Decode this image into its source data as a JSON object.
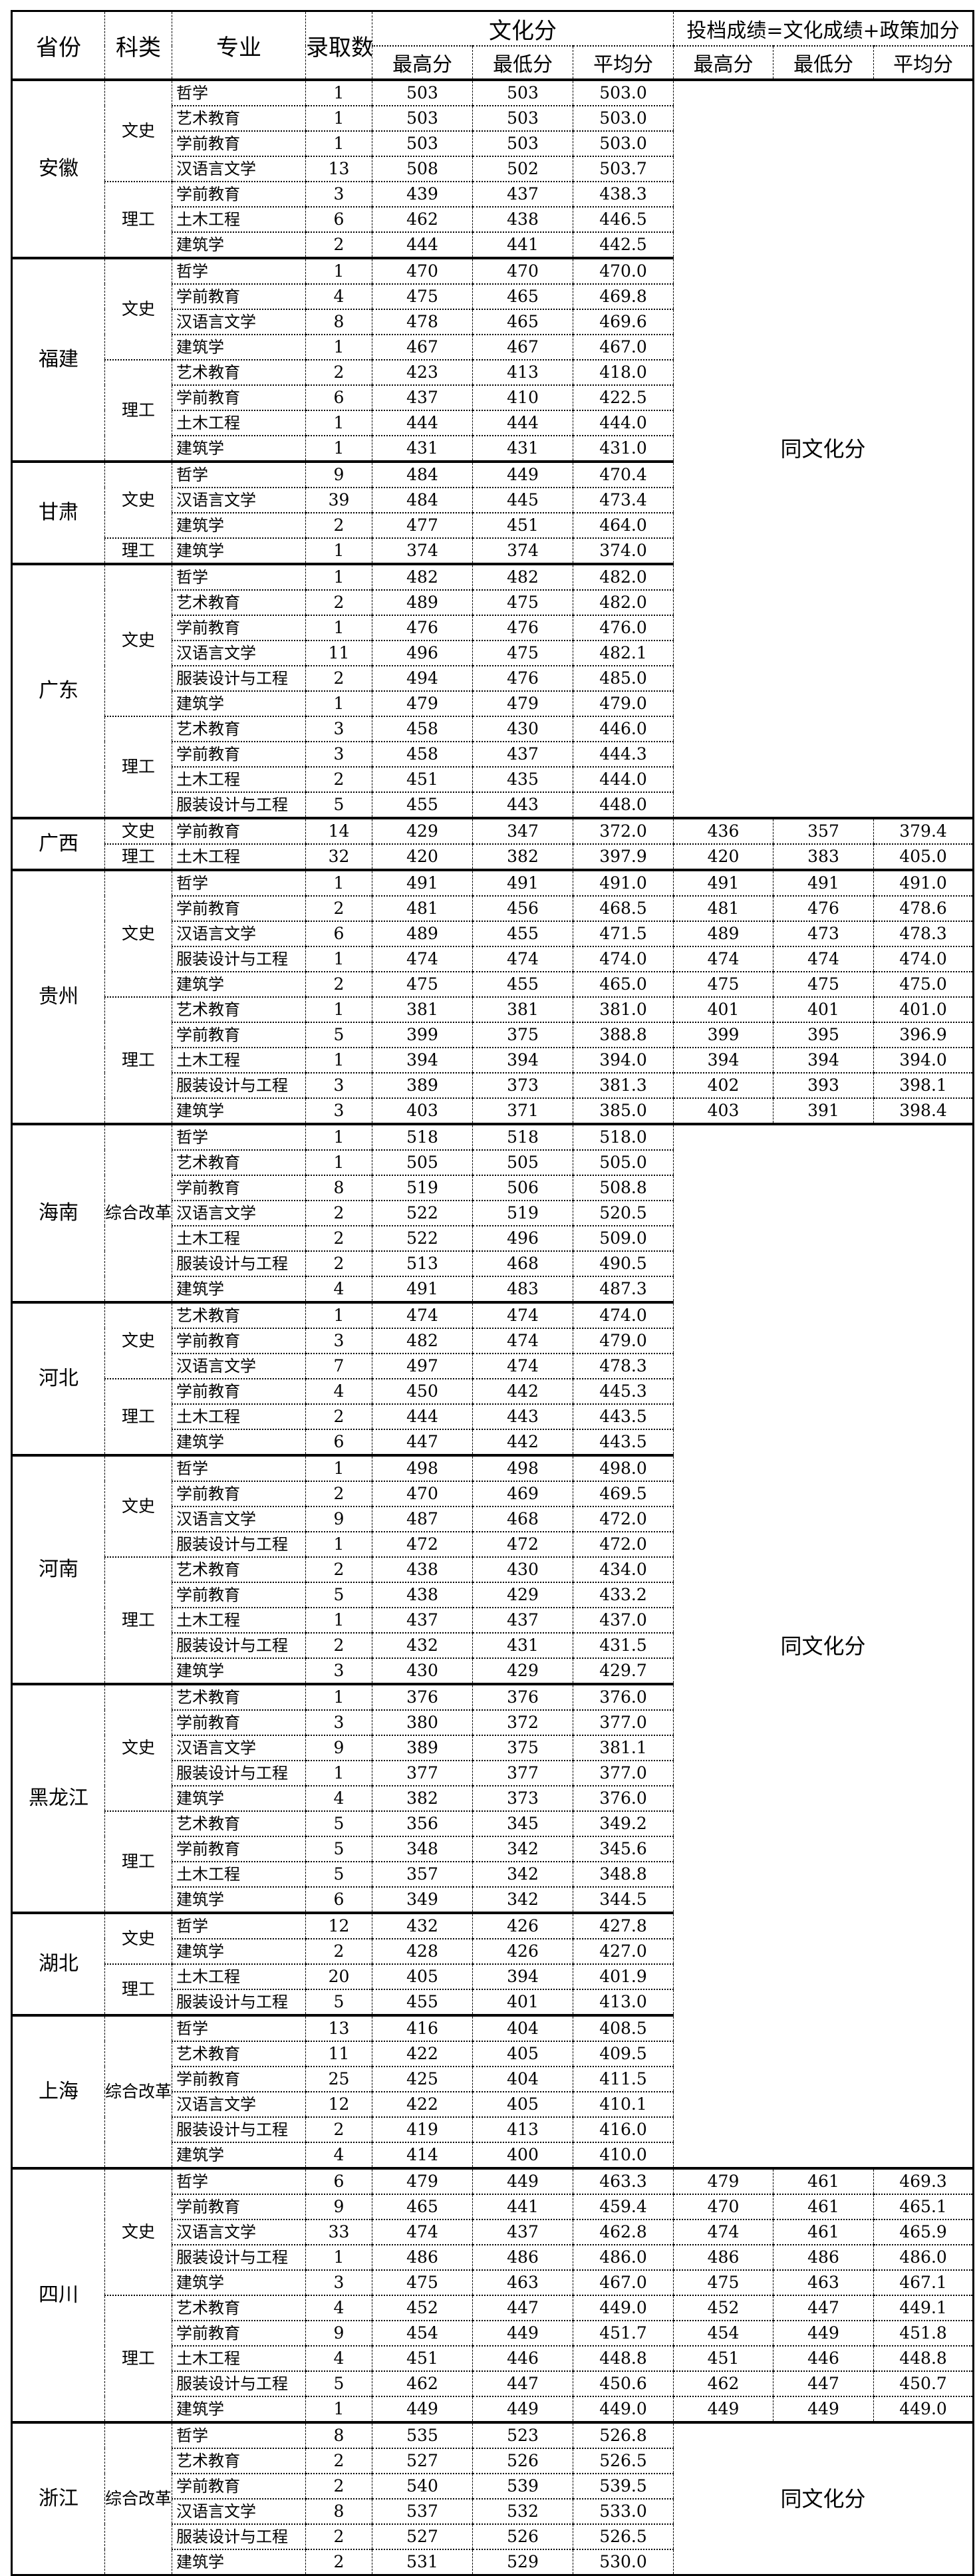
{
  "header": {
    "province": "省份",
    "category": "科类",
    "major": "专业",
    "admitted": "录取数",
    "culture_group": "文化分",
    "filing_group": "投档成绩=文化成绩+政策加分",
    "max": "最高分",
    "min": "最低分",
    "avg": "平均分"
  },
  "columns": [
    "专业",
    "录取数",
    "文化分最高分",
    "文化分最低分",
    "文化分平均分",
    "投档最高分",
    "投档最低分",
    "投档平均分"
  ],
  "same_label": "同文化分",
  "provinces": [
    {
      "name": "安徽",
      "same_as_culture": true,
      "groups": [
        {
          "category": "文史",
          "rows": [
            [
              "哲学",
              "1",
              "503",
              "503",
              "503.0"
            ],
            [
              "艺术教育",
              "1",
              "503",
              "503",
              "503.0"
            ],
            [
              "学前教育",
              "1",
              "503",
              "503",
              "503.0"
            ],
            [
              "汉语言文学",
              "13",
              "508",
              "502",
              "503.7"
            ]
          ]
        },
        {
          "category": "理工",
          "rows": [
            [
              "学前教育",
              "3",
              "439",
              "437",
              "438.3"
            ],
            [
              "土木工程",
              "6",
              "462",
              "438",
              "446.5"
            ],
            [
              "建筑学",
              "2",
              "444",
              "441",
              "442.5"
            ]
          ]
        }
      ]
    },
    {
      "name": "福建",
      "same_as_culture": true,
      "groups": [
        {
          "category": "文史",
          "rows": [
            [
              "哲学",
              "1",
              "470",
              "470",
              "470.0"
            ],
            [
              "学前教育",
              "4",
              "475",
              "465",
              "469.8"
            ],
            [
              "汉语言文学",
              "8",
              "478",
              "465",
              "469.6"
            ],
            [
              "建筑学",
              "1",
              "467",
              "467",
              "467.0"
            ]
          ]
        },
        {
          "category": "理工",
          "rows": [
            [
              "艺术教育",
              "2",
              "423",
              "413",
              "418.0"
            ],
            [
              "学前教育",
              "6",
              "437",
              "410",
              "422.5"
            ],
            [
              "土木工程",
              "1",
              "444",
              "444",
              "444.0"
            ],
            [
              "建筑学",
              "1",
              "431",
              "431",
              "431.0"
            ]
          ]
        }
      ]
    },
    {
      "name": "甘肃",
      "same_as_culture": true,
      "groups": [
        {
          "category": "文史",
          "rows": [
            [
              "哲学",
              "9",
              "484",
              "449",
              "470.4"
            ],
            [
              "汉语言文学",
              "39",
              "484",
              "445",
              "473.4"
            ],
            [
              "建筑学",
              "2",
              "477",
              "451",
              "464.0"
            ]
          ]
        },
        {
          "category": "理工",
          "rows": [
            [
              "建筑学",
              "1",
              "374",
              "374",
              "374.0"
            ]
          ]
        }
      ]
    },
    {
      "name": "广东",
      "same_as_culture": true,
      "groups": [
        {
          "category": "文史",
          "rows": [
            [
              "哲学",
              "1",
              "482",
              "482",
              "482.0"
            ],
            [
              "艺术教育",
              "2",
              "489",
              "475",
              "482.0"
            ],
            [
              "学前教育",
              "1",
              "476",
              "476",
              "476.0"
            ],
            [
              "汉语言文学",
              "11",
              "496",
              "475",
              "482.1"
            ],
            [
              "服装设计与工程",
              "2",
              "494",
              "476",
              "485.0"
            ],
            [
              "建筑学",
              "1",
              "479",
              "479",
              "479.0"
            ]
          ]
        },
        {
          "category": "理工",
          "rows": [
            [
              "艺术教育",
              "3",
              "458",
              "430",
              "446.0"
            ],
            [
              "学前教育",
              "3",
              "458",
              "437",
              "444.3"
            ],
            [
              "土木工程",
              "2",
              "451",
              "435",
              "444.0"
            ],
            [
              "服装设计与工程",
              "5",
              "455",
              "443",
              "448.0"
            ]
          ]
        }
      ]
    },
    {
      "name": "广西",
      "same_as_culture": false,
      "groups": [
        {
          "category": "文史",
          "rows": [
            [
              "学前教育",
              "14",
              "429",
              "347",
              "372.0",
              "436",
              "357",
              "379.4"
            ]
          ]
        },
        {
          "category": "理工",
          "rows": [
            [
              "土木工程",
              "32",
              "420",
              "382",
              "397.9",
              "420",
              "383",
              "405.0"
            ]
          ]
        }
      ]
    },
    {
      "name": "贵州",
      "same_as_culture": false,
      "groups": [
        {
          "category": "文史",
          "rows": [
            [
              "哲学",
              "1",
              "491",
              "491",
              "491.0",
              "491",
              "491",
              "491.0"
            ],
            [
              "学前教育",
              "2",
              "481",
              "456",
              "468.5",
              "481",
              "476",
              "478.6"
            ],
            [
              "汉语言文学",
              "6",
              "489",
              "455",
              "471.5",
              "489",
              "473",
              "478.3"
            ],
            [
              "服装设计与工程",
              "1",
              "474",
              "474",
              "474.0",
              "474",
              "474",
              "474.0"
            ],
            [
              "建筑学",
              "2",
              "475",
              "455",
              "465.0",
              "475",
              "475",
              "475.0"
            ]
          ]
        },
        {
          "category": "理工",
          "rows": [
            [
              "艺术教育",
              "1",
              "381",
              "381",
              "381.0",
              "401",
              "401",
              "401.0"
            ],
            [
              "学前教育",
              "5",
              "399",
              "375",
              "388.8",
              "399",
              "395",
              "396.9"
            ],
            [
              "土木工程",
              "1",
              "394",
              "394",
              "394.0",
              "394",
              "394",
              "394.0"
            ],
            [
              "服装设计与工程",
              "3",
              "389",
              "373",
              "381.3",
              "402",
              "393",
              "398.1"
            ],
            [
              "建筑学",
              "3",
              "403",
              "371",
              "385.0",
              "403",
              "391",
              "398.4"
            ]
          ]
        }
      ]
    },
    {
      "name": "海南",
      "same_as_culture": true,
      "groups": [
        {
          "category": "综合改革",
          "rows": [
            [
              "哲学",
              "1",
              "518",
              "518",
              "518.0"
            ],
            [
              "艺术教育",
              "1",
              "505",
              "505",
              "505.0"
            ],
            [
              "学前教育",
              "8",
              "519",
              "506",
              "508.8"
            ],
            [
              "汉语言文学",
              "2",
              "522",
              "519",
              "520.5"
            ],
            [
              "土木工程",
              "2",
              "522",
              "496",
              "509.0"
            ],
            [
              "服装设计与工程",
              "2",
              "513",
              "468",
              "490.5"
            ],
            [
              "建筑学",
              "4",
              "491",
              "483",
              "487.3"
            ]
          ]
        }
      ]
    },
    {
      "name": "河北",
      "same_as_culture": true,
      "groups": [
        {
          "category": "文史",
          "rows": [
            [
              "艺术教育",
              "1",
              "474",
              "474",
              "474.0"
            ],
            [
              "学前教育",
              "3",
              "482",
              "474",
              "479.0"
            ],
            [
              "汉语言文学",
              "7",
              "497",
              "474",
              "478.3"
            ]
          ]
        },
        {
          "category": "理工",
          "rows": [
            [
              "学前教育",
              "4",
              "450",
              "442",
              "445.3"
            ],
            [
              "土木工程",
              "2",
              "444",
              "443",
              "443.5"
            ],
            [
              "建筑学",
              "6",
              "447",
              "442",
              "443.5"
            ]
          ]
        }
      ]
    },
    {
      "name": "河南",
      "same_as_culture": true,
      "groups": [
        {
          "category": "文史",
          "rows": [
            [
              "哲学",
              "1",
              "498",
              "498",
              "498.0"
            ],
            [
              "学前教育",
              "2",
              "470",
              "469",
              "469.5"
            ],
            [
              "汉语言文学",
              "9",
              "487",
              "468",
              "472.0"
            ],
            [
              "服装设计与工程",
              "1",
              "472",
              "472",
              "472.0"
            ]
          ]
        },
        {
          "category": "理工",
          "rows": [
            [
              "艺术教育",
              "2",
              "438",
              "430",
              "434.0"
            ],
            [
              "学前教育",
              "5",
              "438",
              "429",
              "433.2"
            ],
            [
              "土木工程",
              "1",
              "437",
              "437",
              "437.0"
            ],
            [
              "服装设计与工程",
              "2",
              "432",
              "431",
              "431.5"
            ],
            [
              "建筑学",
              "3",
              "430",
              "429",
              "429.7"
            ]
          ]
        }
      ]
    },
    {
      "name": "黑龙江",
      "same_as_culture": true,
      "groups": [
        {
          "category": "文史",
          "rows": [
            [
              "艺术教育",
              "1",
              "376",
              "376",
              "376.0"
            ],
            [
              "学前教育",
              "3",
              "380",
              "372",
              "377.0"
            ],
            [
              "汉语言文学",
              "9",
              "389",
              "375",
              "381.1"
            ],
            [
              "服装设计与工程",
              "1",
              "377",
              "377",
              "377.0"
            ],
            [
              "建筑学",
              "4",
              "382",
              "373",
              "376.0"
            ]
          ]
        },
        {
          "category": "理工",
          "rows": [
            [
              "艺术教育",
              "5",
              "356",
              "345",
              "349.2"
            ],
            [
              "学前教育",
              "5",
              "348",
              "342",
              "345.6"
            ],
            [
              "土木工程",
              "5",
              "357",
              "342",
              "348.8"
            ],
            [
              "建筑学",
              "6",
              "349",
              "342",
              "344.5"
            ]
          ]
        }
      ]
    },
    {
      "name": "湖北",
      "same_as_culture": true,
      "groups": [
        {
          "category": "文史",
          "rows": [
            [
              "哲学",
              "12",
              "432",
              "426",
              "427.8"
            ],
            [
              "建筑学",
              "2",
              "428",
              "426",
              "427.0"
            ]
          ]
        },
        {
          "category": "理工",
          "rows": [
            [
              "土木工程",
              "20",
              "405",
              "394",
              "401.9"
            ],
            [
              "服装设计与工程",
              "5",
              "455",
              "401",
              "413.0"
            ]
          ]
        }
      ]
    },
    {
      "name": "上海",
      "same_as_culture": true,
      "groups": [
        {
          "category": "综合改革",
          "rows": [
            [
              "哲学",
              "13",
              "416",
              "404",
              "408.5"
            ],
            [
              "艺术教育",
              "11",
              "422",
              "405",
              "409.5"
            ],
            [
              "学前教育",
              "25",
              "425",
              "404",
              "411.5"
            ],
            [
              "汉语言文学",
              "12",
              "422",
              "405",
              "410.1"
            ],
            [
              "服装设计与工程",
              "2",
              "419",
              "413",
              "416.0"
            ],
            [
              "建筑学",
              "4",
              "414",
              "400",
              "410.0"
            ]
          ]
        }
      ]
    },
    {
      "name": "四川",
      "same_as_culture": false,
      "groups": [
        {
          "category": "文史",
          "rows": [
            [
              "哲学",
              "6",
              "479",
              "449",
              "463.3",
              "479",
              "461",
              "469.3"
            ],
            [
              "学前教育",
              "9",
              "465",
              "441",
              "459.4",
              "470",
              "461",
              "465.1"
            ],
            [
              "汉语言文学",
              "33",
              "474",
              "437",
              "462.8",
              "474",
              "461",
              "465.9"
            ],
            [
              "服装设计与工程",
              "1",
              "486",
              "486",
              "486.0",
              "486",
              "486",
              "486.0"
            ],
            [
              "建筑学",
              "3",
              "475",
              "463",
              "467.0",
              "475",
              "463",
              "467.1"
            ]
          ]
        },
        {
          "category": "理工",
          "rows": [
            [
              "艺术教育",
              "4",
              "452",
              "447",
              "449.0",
              "452",
              "447",
              "449.1"
            ],
            [
              "学前教育",
              "9",
              "454",
              "449",
              "451.7",
              "454",
              "449",
              "451.8"
            ],
            [
              "土木工程",
              "4",
              "451",
              "446",
              "448.8",
              "451",
              "446",
              "448.8"
            ],
            [
              "服装设计与工程",
              "5",
              "462",
              "447",
              "450.6",
              "462",
              "447",
              "450.7"
            ],
            [
              "建筑学",
              "1",
              "449",
              "449",
              "449.0",
              "449",
              "449",
              "449.0"
            ]
          ]
        }
      ]
    },
    {
      "name": "浙江",
      "same_as_culture": true,
      "groups": [
        {
          "category": "综合改革",
          "rows": [
            [
              "哲学",
              "8",
              "535",
              "523",
              "526.8"
            ],
            [
              "艺术教育",
              "2",
              "527",
              "526",
              "526.5"
            ],
            [
              "学前教育",
              "2",
              "540",
              "539",
              "539.5"
            ],
            [
              "汉语言文学",
              "8",
              "537",
              "532",
              "533.0"
            ],
            [
              "服装设计与工程",
              "2",
              "527",
              "526",
              "526.5"
            ],
            [
              "建筑学",
              "2",
              "531",
              "529",
              "530.0"
            ]
          ]
        }
      ]
    }
  ]
}
